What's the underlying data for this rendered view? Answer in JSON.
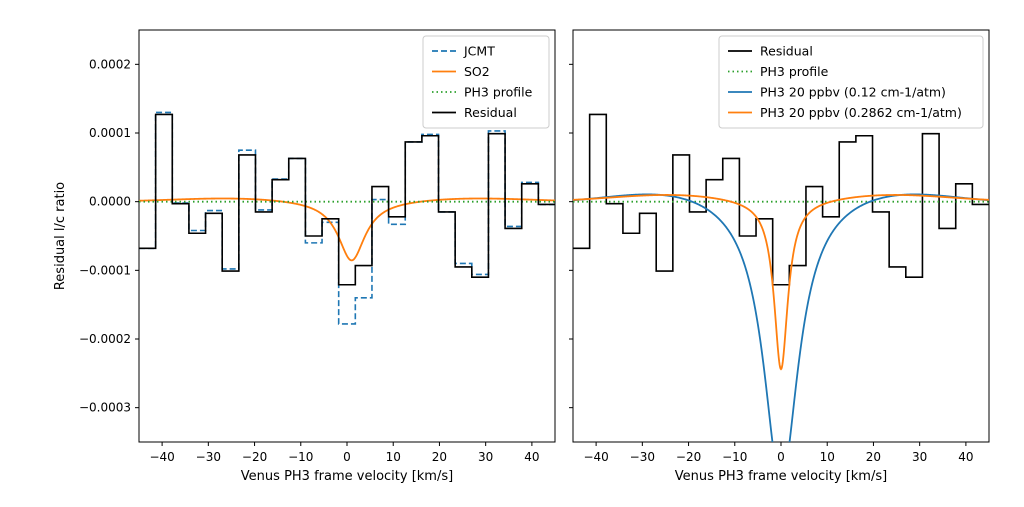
{
  "chart_data": [
    {
      "type": "line",
      "xlabel": "Venus PH3 frame velocity [km/s]",
      "ylabel": "Residual l/c ratio",
      "xlim": [
        -45,
        45
      ],
      "ylim": [
        -0.00035,
        0.00025
      ],
      "x_ticks": [
        -40,
        -30,
        -20,
        -10,
        0,
        10,
        20,
        30,
        40
      ],
      "x_tick_labels": [
        "−40",
        "−30",
        "−20",
        "−10",
        "0",
        "10",
        "20",
        "30",
        "40"
      ],
      "y_ticks": [
        0.0002,
        0.0001,
        0.0,
        -0.0001,
        -0.0002,
        -0.0003
      ],
      "y_tick_labels": [
        "0.0002",
        "0.0001",
        "0.0000",
        "−0.0001",
        "−0.0002",
        "−0.0003"
      ],
      "legend_position": "top-right",
      "series": [
        {
          "name": "JCMT",
          "style": "step",
          "color": "#1f77b4",
          "dash": "dashed",
          "x": [
            -45,
            -41.4,
            -37.8,
            -34.2,
            -30.6,
            -27.0,
            -23.4,
            -19.8,
            -16.2,
            -12.6,
            -9.0,
            -5.4,
            -1.8,
            1.8,
            5.4,
            9.0,
            12.6,
            16.2,
            19.8,
            23.4,
            27.0,
            30.6,
            34.2,
            37.8,
            41.4
          ],
          "y": [
            -6.8e-05,
            0.00013,
            -2e-06,
            -4.2e-05,
            -1.3e-05,
            -9.8e-05,
            7.5e-05,
            -1.2e-05,
            3.3e-05,
            6.3e-05,
            -6e-05,
            -3e-05,
            -0.000178,
            -0.00014,
            3e-06,
            -3.3e-05,
            8.7e-05,
            9.8e-05,
            -1.5e-05,
            -9e-05,
            -0.000106,
            0.000103,
            -3.6e-05,
            2.8e-05,
            -4e-06
          ]
        },
        {
          "name": "SO2",
          "style": "curve",
          "color": "#ff7f0e",
          "center": 1.0,
          "depth": -8.55e-05,
          "width": 3.5,
          "bump": 6.5e-06,
          "bump_width": 24
        },
        {
          "name": "PH3 profile",
          "style": "flat",
          "color": "#2ca02c",
          "dash": "dotted",
          "value": 0.0
        },
        {
          "name": "Residual",
          "style": "step",
          "color": "#000000",
          "x": [
            -45,
            -41.4,
            -37.8,
            -34.2,
            -30.6,
            -27.0,
            -23.4,
            -19.8,
            -16.2,
            -12.6,
            -9.0,
            -5.4,
            -1.8,
            1.8,
            5.4,
            9.0,
            12.6,
            16.2,
            19.8,
            23.4,
            27.0,
            30.6,
            34.2,
            37.8,
            41.4
          ],
          "y": [
            -6.8e-05,
            0.000127,
            -3e-06,
            -4.6e-05,
            -1.7e-05,
            -0.000101,
            6.8e-05,
            -1.5e-05,
            3.2e-05,
            6.3e-05,
            -5e-05,
            -2.5e-05,
            -0.000121,
            -9.3e-05,
            2.2e-05,
            -2.2e-05,
            8.7e-05,
            9.6e-05,
            -1.5e-05,
            -9.5e-05,
            -0.00011,
            9.9e-05,
            -3.9e-05,
            2.6e-05,
            -4e-06
          ]
        }
      ]
    },
    {
      "type": "line",
      "xlabel": "Venus PH3 frame velocity [km/s]",
      "xlim": [
        -45,
        45
      ],
      "ylim": [
        -0.00035,
        0.00025
      ],
      "x_ticks": [
        -40,
        -30,
        -20,
        -10,
        0,
        10,
        20,
        30,
        40
      ],
      "x_tick_labels": [
        "−40",
        "−30",
        "−20",
        "−10",
        "0",
        "10",
        "20",
        "30",
        "40"
      ],
      "y_ticks": [
        0.0002,
        0.0001,
        0.0,
        -0.0001,
        -0.0002,
        -0.0003
      ],
      "legend_position": "top-right",
      "series": [
        {
          "name": "Residual",
          "style": "step",
          "color": "#000000",
          "x": [
            -45,
            -41.4,
            -37.8,
            -34.2,
            -30.6,
            -27.0,
            -23.4,
            -19.8,
            -16.2,
            -12.6,
            -9.0,
            -5.4,
            -1.8,
            1.8,
            5.4,
            9.0,
            12.6,
            16.2,
            19.8,
            23.4,
            27.0,
            30.6,
            34.2,
            37.8,
            41.4
          ],
          "y": [
            -6.8e-05,
            0.000127,
            -3e-06,
            -4.6e-05,
            -1.7e-05,
            -0.000101,
            6.8e-05,
            -1.5e-05,
            3.2e-05,
            6.3e-05,
            -5e-05,
            -2.5e-05,
            -0.000121,
            -9.3e-05,
            2.2e-05,
            -2.2e-05,
            8.7e-05,
            9.6e-05,
            -1.5e-05,
            -9.5e-05,
            -0.00011,
            9.9e-05,
            -3.9e-05,
            2.6e-05,
            -4e-06
          ]
        },
        {
          "name": "PH3 profile",
          "style": "flat",
          "color": "#2ca02c",
          "dash": "dotted",
          "value": 0.0
        },
        {
          "name": "PH3 20 ppbv (0.12 cm-1/atm)",
          "style": "curve",
          "color": "#1f77b4",
          "center": 0.0,
          "depth": -0.00041,
          "width": 4.5,
          "bump": 2.4e-05,
          "bump_width": 22
        },
        {
          "name": "PH3 20 ppbv (0.2862 cm-1/atm)",
          "style": "curve",
          "color": "#ff7f0e",
          "center": 0.0,
          "depth": -0.000244,
          "width": 1.8,
          "bump": 1.2e-05,
          "bump_width": 22
        }
      ]
    }
  ]
}
